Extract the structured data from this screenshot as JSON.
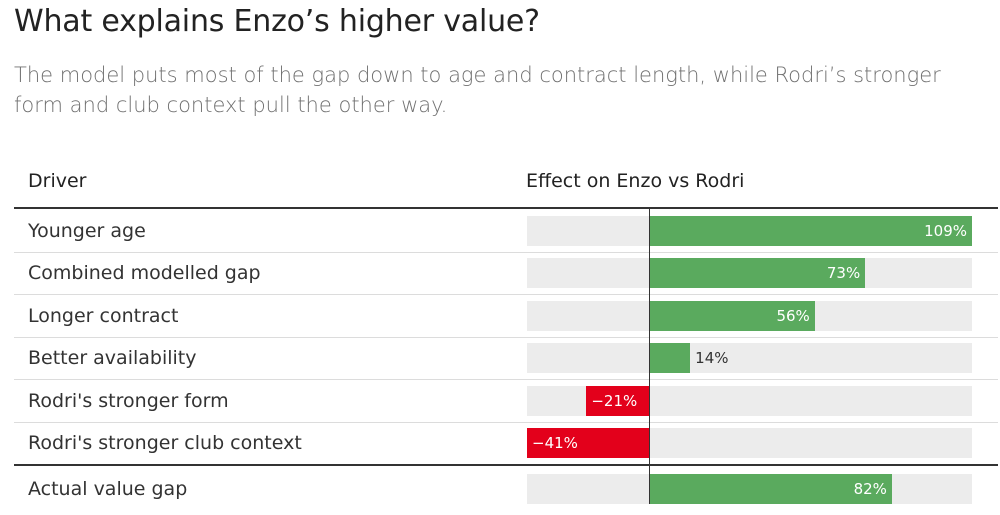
{
  "title": "What explains Enzo’s higher value?",
  "subtitle": "The model puts most of the gap down to age and contract length, while Rodri’s stronger form and club context pull the other way.",
  "columns": {
    "driver": "Driver",
    "effect": "Effect on Enzo vs Rodri"
  },
  "colors": {
    "positive": "#5aaa5e",
    "negative": "#e3001b",
    "track": "#ececec"
  },
  "chart_data": {
    "type": "bar",
    "orientation": "horizontal",
    "categories": [
      "Younger age",
      "Combined modelled gap",
      "Longer contract",
      "Better availability",
      "Rodri's stronger form",
      "Rodri's stronger club context",
      "Actual value gap"
    ],
    "values": [
      109,
      73,
      56,
      14,
      -21,
      -41,
      82
    ],
    "value_labels": [
      "109%",
      "73%",
      "56%",
      "14%",
      "−21%",
      "−41%",
      "82%"
    ],
    "xlim": [
      -41,
      109
    ],
    "unit": "%"
  }
}
